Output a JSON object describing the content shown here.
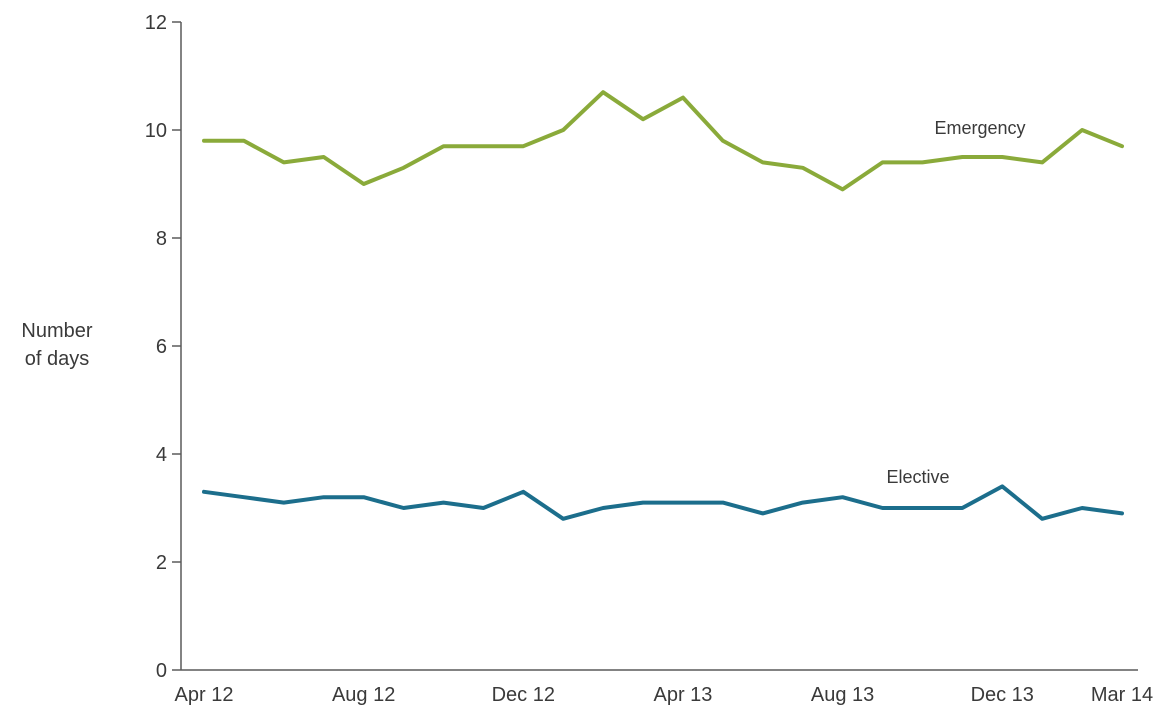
{
  "chart_data": {
    "type": "line",
    "title": "",
    "xlabel": "",
    "ylabel_lines": [
      "Number",
      "of days"
    ],
    "ylim": [
      0,
      12
    ],
    "yticks": [
      0,
      2,
      4,
      6,
      8,
      10,
      12
    ],
    "x": [
      "Apr 12",
      "May 12",
      "Jun 12",
      "Jul 12",
      "Aug 12",
      "Sep 12",
      "Oct 12",
      "Nov 12",
      "Dec 12",
      "Jan 13",
      "Feb 13",
      "Mar 13",
      "Apr 13",
      "May 13",
      "Jun 13",
      "Jul 13",
      "Aug 13",
      "Sep 13",
      "Oct 13",
      "Nov 13",
      "Dec 13",
      "Jan 14",
      "Feb 14",
      "Mar 14"
    ],
    "xtick_labels": [
      "Apr 12",
      "Aug 12",
      "Dec 12",
      "Apr 13",
      "Aug 13",
      "Dec 13",
      "Mar 14"
    ],
    "series": [
      {
        "name": "Emergency",
        "color": "#8aaa3a",
        "values": [
          9.8,
          9.8,
          9.4,
          9.5,
          9.0,
          9.3,
          9.7,
          9.7,
          9.7,
          10.0,
          10.7,
          10.2,
          10.6,
          9.8,
          9.4,
          9.3,
          8.9,
          9.4,
          9.4,
          9.5,
          9.5,
          9.4,
          10.0,
          9.7
        ]
      },
      {
        "name": "Elective",
        "color": "#1c6e8c",
        "values": [
          3.3,
          3.2,
          3.1,
          3.2,
          3.2,
          3.0,
          3.1,
          3.0,
          3.3,
          2.8,
          3.0,
          3.1,
          3.1,
          3.1,
          2.9,
          3.1,
          3.2,
          3.0,
          3.0,
          3.0,
          3.4,
          2.8,
          3.0,
          2.9
        ]
      }
    ],
    "grid": false,
    "legend": "inline labels near lines"
  }
}
